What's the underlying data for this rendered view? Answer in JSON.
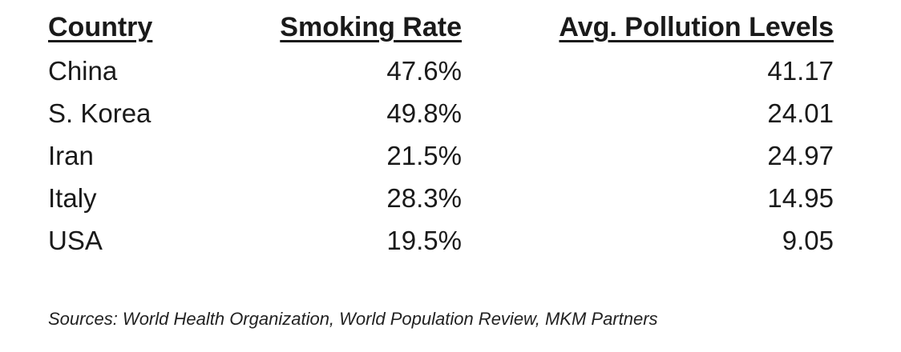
{
  "chart_data": {
    "type": "table",
    "columns": [
      "Country",
      "Smoking Rate",
      "Avg. Pollution Levels"
    ],
    "rows": [
      {
        "country": "China",
        "smoking_rate": "47.6%",
        "pollution": "41.17"
      },
      {
        "country": "S. Korea",
        "smoking_rate": "49.8%",
        "pollution": "24.01"
      },
      {
        "country": "Iran",
        "smoking_rate": "21.5%",
        "pollution": "24.97"
      },
      {
        "country": "Italy",
        "smoking_rate": "28.3%",
        "pollution": "14.95"
      },
      {
        "country": "USA",
        "smoking_rate": "19.5%",
        "pollution": "9.05"
      }
    ],
    "source": "Sources: World Health Organization, World Population Review,  MKM Partners"
  }
}
